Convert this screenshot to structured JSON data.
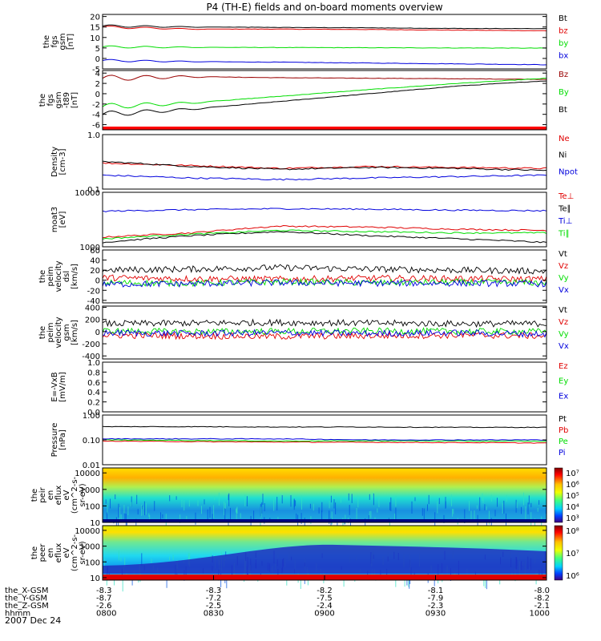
{
  "title": "P4 (TH-E) fields and on-board moments overview",
  "date_label": "2007 Dec 24",
  "colors": {
    "black": "#000000",
    "red": "#e00000",
    "green": "#00dd00",
    "blue": "#0000dd",
    "darkred": "#990000"
  },
  "ephemeris": {
    "labels": [
      "the_X-GSM",
      "the_Y-GSM",
      "the_Z-GSM",
      "hhmm"
    ],
    "columns": [
      [
        "-8.3",
        "-8.7",
        "-2.6",
        "0800"
      ],
      [
        "-8.3",
        "-7.2",
        "-2.5",
        "0830"
      ],
      [
        "-8.2",
        "-7.5",
        "-2.4",
        "0900"
      ],
      [
        "-8.1",
        "-7.9",
        "-2.3",
        "0930"
      ],
      [
        "-8.0",
        "-8.2",
        "-2.1",
        "1000"
      ]
    ]
  },
  "chart_data": [
    {
      "type": "line",
      "ylabel": [
        "the",
        "fgs",
        "gsm",
        "[nT]"
      ],
      "ylim": [
        -5,
        21
      ],
      "ticks": [
        "20",
        "15",
        "10",
        "5",
        "0",
        "-5"
      ],
      "tick_values": [
        20,
        15,
        10,
        5,
        0,
        -5
      ],
      "series": [
        {
          "name": "Bt",
          "color": "#000000",
          "values": [
            15.5,
            15,
            14.8,
            14.6,
            14.3,
            14.2
          ]
        },
        {
          "name": "bz",
          "color": "#e00000",
          "values": [
            15,
            14,
            14,
            13.8,
            13.5,
            13.2
          ]
        },
        {
          "name": "by",
          "color": "#00dd00",
          "values": [
            5.5,
            5.3,
            5.2,
            5.1,
            5.0,
            4.9
          ]
        },
        {
          "name": "bx",
          "color": "#0000dd",
          "values": [
            -1,
            -1.5,
            -1.8,
            -2.2,
            -2.6,
            -3
          ]
        }
      ]
    },
    {
      "type": "line",
      "ylabel": [
        "the",
        "fgs",
        "gsm",
        "-t89",
        "[nT]"
      ],
      "ylim": [
        -7,
        4.5
      ],
      "ticks": [
        "4",
        "2",
        "0",
        "-2",
        "-4",
        "-6"
      ],
      "tick_values": [
        4,
        2,
        0,
        -2,
        -4,
        -6
      ],
      "series": [
        {
          "name": "Bz",
          "color": "#990000",
          "values": [
            3,
            3.3,
            3.1,
            3.0,
            2.9,
            2.8
          ]
        },
        {
          "name": "By",
          "color": "#00dd00",
          "values": [
            -2.5,
            -1.8,
            -0.5,
            0.8,
            2.0,
            3.0
          ]
        },
        {
          "name": "Bt",
          "color": "#000000",
          "values": [
            -4,
            -3,
            -1.5,
            0,
            1.5,
            2.5
          ]
        }
      ]
    },
    {
      "type": "line",
      "ylabel": [
        "Density",
        "[cm-3]"
      ],
      "ylim": [
        0.1,
        1.0
      ],
      "ticks": [
        "1.0",
        "0.1"
      ],
      "tick_values": [
        1.0,
        0.1
      ],
      "log": true,
      "series": [
        {
          "name": "Ne",
          "color": "#e00000",
          "values": [
            0.3,
            0.27,
            0.24,
            0.26,
            0.25,
            0.24
          ]
        },
        {
          "name": "Ni",
          "color": "#000000",
          "values": [
            0.32,
            0.26,
            0.23,
            0.25,
            0.24,
            0.22
          ]
        },
        {
          "name": "Npot",
          "color": "#0000dd",
          "values": [
            0.18,
            0.16,
            0.15,
            0.16,
            0.17,
            0.18
          ]
        }
      ]
    },
    {
      "type": "line",
      "ylabel": [
        "moat3",
        "[eV]"
      ],
      "ylim": [
        1000,
        10000
      ],
      "ticks": [
        "10000",
        "1000"
      ],
      "tick_values": [
        10000,
        1000
      ],
      "log": true,
      "series": [
        {
          "name": "Te⊥",
          "color": "#e00000",
          "values": [
            1500,
            1800,
            2400,
            2300,
            2100,
            2000
          ]
        },
        {
          "name": "Te∥",
          "color": "#000000",
          "values": [
            1200,
            1600,
            1900,
            1600,
            1400,
            1200
          ]
        },
        {
          "name": "Ti⊥",
          "color": "#0000dd",
          "values": [
            4500,
            4800,
            5000,
            4900,
            4700,
            4600
          ]
        },
        {
          "name": "Ti∥",
          "color": "#00dd00",
          "values": [
            1400,
            1700,
            2000,
            1900,
            1800,
            1800
          ]
        }
      ]
    },
    {
      "type": "line",
      "ylabel": [
        "the",
        "peim",
        "velocity",
        "dsl",
        "[km/s]"
      ],
      "ylim": [
        -45,
        60
      ],
      "ticks": [
        "60",
        "40",
        "20",
        "0",
        "-20",
        "-40"
      ],
      "tick_values": [
        60,
        40,
        20,
        0,
        -20,
        -40
      ],
      "series": [
        {
          "name": "Vt",
          "color": "#000000",
          "values": [
            20,
            22,
            25,
            22,
            20,
            18
          ]
        },
        {
          "name": "Vz",
          "color": "#e00000",
          "values": [
            5,
            3,
            2,
            4,
            3,
            2
          ]
        },
        {
          "name": "Vy",
          "color": "#00dd00",
          "values": [
            -5,
            -6,
            -3,
            -5,
            -4,
            -5
          ]
        },
        {
          "name": "Vx",
          "color": "#0000dd",
          "values": [
            -8,
            -7,
            -5,
            -6,
            -6,
            -7
          ]
        }
      ]
    },
    {
      "type": "line",
      "ylabel": [
        "the",
        "peim",
        "velocity",
        "gsm",
        "[km/s]"
      ],
      "ylim": [
        -450,
        420
      ],
      "ticks": [
        "400",
        "200",
        "0",
        "-200",
        "-400"
      ],
      "tick_values": [
        400,
        200,
        0,
        -200,
        -400
      ],
      "series": [
        {
          "name": "Vt",
          "color": "#000000",
          "values": [
            130,
            140,
            150,
            140,
            130,
            130
          ]
        },
        {
          "name": "Vz",
          "color": "#e00000",
          "values": [
            -60,
            -70,
            -80,
            -70,
            -60,
            -70
          ]
        },
        {
          "name": "Vy",
          "color": "#00dd00",
          "values": [
            10,
            0,
            5,
            10,
            5,
            0
          ]
        },
        {
          "name": "Vx",
          "color": "#0000dd",
          "values": [
            -20,
            -30,
            -20,
            -30,
            -20,
            -40
          ]
        }
      ]
    },
    {
      "type": "line",
      "ylabel": [
        "E=-VxB",
        "[mV/m]"
      ],
      "ylim": [
        0,
        1.0
      ],
      "ticks": [
        "1.0",
        "0.8",
        "0.6",
        "0.4",
        "0.2",
        "0.0"
      ],
      "tick_values": [
        1.0,
        0.8,
        0.6,
        0.4,
        0.2,
        0.0
      ],
      "series": [
        {
          "name": "Ez",
          "color": "#e00000",
          "values": []
        },
        {
          "name": "Ey",
          "color": "#00dd00",
          "values": []
        },
        {
          "name": "Ex",
          "color": "#0000dd",
          "values": []
        }
      ]
    },
    {
      "type": "line",
      "ylabel": [
        "Pressure",
        "[nPa]"
      ],
      "ylim": [
        0.01,
        1.0
      ],
      "ticks": [
        "1.00",
        "0.10",
        "0.01"
      ],
      "tick_values": [
        1.0,
        0.1,
        0.01
      ],
      "log": true,
      "series": [
        {
          "name": "Pt",
          "color": "#000000",
          "values": [
            0.34,
            0.34,
            0.33,
            0.33,
            0.32,
            0.32
          ]
        },
        {
          "name": "Pb",
          "color": "#e00000",
          "values": [
            0.09,
            0.085,
            0.082,
            0.08,
            0.078,
            0.075
          ]
        },
        {
          "name": "Pe",
          "color": "#00dd00",
          "values": [
            0.1,
            0.095,
            0.09,
            0.092,
            0.09,
            0.088
          ]
        },
        {
          "name": "Pi",
          "color": "#0000dd",
          "values": [
            0.11,
            0.11,
            0.11,
            0.1,
            0.1,
            0.1
          ]
        }
      ]
    },
    {
      "type": "heatmap",
      "ylabel": [
        "the",
        "peir",
        "en",
        "eflux",
        "eV",
        "(cm^2-s-",
        "sr-eV)"
      ],
      "ylim": [
        10,
        20000
      ],
      "ticks": [
        "10000",
        "1000",
        "100",
        "10"
      ],
      "tick_values": [
        10000,
        1000,
        100,
        10
      ],
      "log": true,
      "colorbar_ticks": [
        "10⁷",
        "10⁶",
        "10⁵",
        "10⁴",
        "10³"
      ],
      "colorbar_values": [
        7,
        6,
        5,
        4,
        3
      ]
    },
    {
      "type": "heatmap",
      "ylabel": [
        "the",
        "peer",
        "en",
        "eflux",
        "eV",
        "(cm^2-s-",
        "sr-eV)"
      ],
      "ylim": [
        7,
        20000
      ],
      "ticks": [
        "10000",
        "1000",
        "100",
        "10"
      ],
      "tick_values": [
        10000,
        1000,
        100,
        10
      ],
      "log": true,
      "colorbar_ticks": [
        "10⁸",
        "10⁷",
        "10⁶"
      ],
      "colorbar_values": [
        8,
        7,
        6
      ]
    }
  ]
}
